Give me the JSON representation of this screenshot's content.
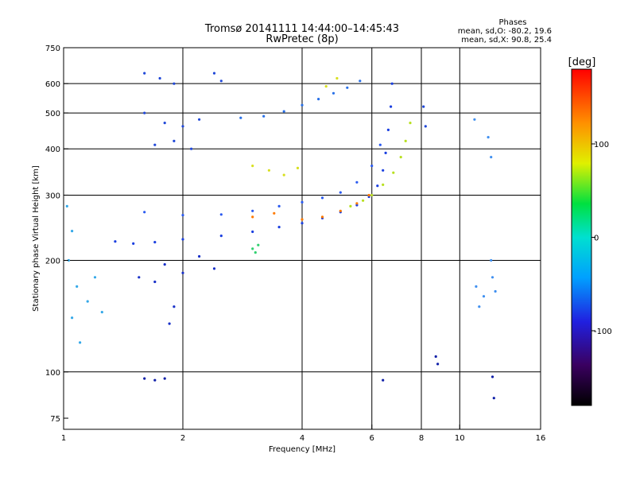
{
  "chart_data": {
    "type": "scatter",
    "title": "Tromsø 20141111 14:44:00–14:45:43",
    "subtitle": "RwPretec (8p)",
    "stats": {
      "heading": "Phases",
      "line_o": "mean, sd,O: -80.2, 19.6",
      "line_x": "mean, sd,X:  90.8, 25.4"
    },
    "xlabel": "Frequency [MHz]",
    "ylabel": "Stationary phase Virtual Height [km]",
    "x_scale": "log",
    "y_scale": "log",
    "xlim": [
      1,
      16
    ],
    "ylim": [
      70,
      750
    ],
    "x_ticks": [
      1,
      2,
      4,
      6,
      8,
      10,
      16
    ],
    "y_ticks": [
      75,
      100,
      200,
      300,
      400,
      500,
      600,
      750
    ],
    "x_gridlines": [
      2,
      4,
      6,
      8,
      10
    ],
    "y_gridlines": [
      100,
      200,
      300,
      400,
      500,
      600
    ],
    "grid": true,
    "colorbar": {
      "label": "[deg]",
      "range": [
        -180,
        180
      ],
      "ticks": [
        100,
        0,
        -100
      ],
      "placement": "right"
    },
    "series": [
      {
        "phase_deg": -100,
        "color": "#1a3fe0",
        "points": [
          [
            1.35,
            225
          ],
          [
            1.5,
            222
          ],
          [
            1.7,
            224
          ],
          [
            2.0,
            228
          ],
          [
            2.5,
            233
          ],
          [
            3.0,
            239
          ],
          [
            3.5,
            246
          ],
          [
            4.0,
            252
          ],
          [
            4.5,
            260
          ],
          [
            5.0,
            270
          ],
          [
            5.5,
            282
          ],
          [
            5.9,
            297
          ],
          [
            6.2,
            318
          ],
          [
            6.4,
            350
          ],
          [
            6.5,
            390
          ],
          [
            6.6,
            450
          ],
          [
            6.7,
            520
          ],
          [
            6.75,
            600
          ]
        ]
      },
      {
        "phase_deg": -90,
        "color": "#2a5af0",
        "points": [
          [
            1.6,
            270
          ],
          [
            2.0,
            265
          ],
          [
            2.5,
            266
          ],
          [
            3.0,
            272
          ],
          [
            3.5,
            280
          ],
          [
            4.0,
            287
          ],
          [
            4.5,
            295
          ],
          [
            5.0,
            305
          ],
          [
            5.5,
            325
          ],
          [
            6.0,
            360
          ],
          [
            6.3,
            410
          ]
        ]
      },
      {
        "phase_deg": -85,
        "color": "#2870e8",
        "points": [
          [
            2.8,
            485
          ],
          [
            3.2,
            490
          ],
          [
            3.6,
            505
          ],
          [
            4.0,
            525
          ],
          [
            4.4,
            545
          ],
          [
            4.8,
            565
          ],
          [
            5.2,
            585
          ],
          [
            5.6,
            610
          ]
        ]
      },
      {
        "phase_deg": 95,
        "color": "#b8e020",
        "points": [
          [
            5.3,
            280
          ],
          [
            5.7,
            290
          ],
          [
            6.0,
            300
          ],
          [
            6.4,
            320
          ],
          [
            6.8,
            345
          ],
          [
            7.1,
            380
          ],
          [
            7.3,
            420
          ],
          [
            7.5,
            470
          ]
        ]
      },
      {
        "phase_deg": 135,
        "color": "#ff7a00",
        "points": [
          [
            3.0,
            262
          ],
          [
            3.4,
            268
          ],
          [
            4.0,
            258
          ],
          [
            4.5,
            262
          ],
          [
            5.0,
            272
          ],
          [
            5.5,
            285
          ],
          [
            5.9,
            300
          ]
        ]
      },
      {
        "phase_deg": -75,
        "color": "#34a8e8",
        "points": [
          [
            1.02,
            280
          ],
          [
            1.05,
            240
          ],
          [
            1.03,
            200
          ],
          [
            1.08,
            170
          ],
          [
            1.05,
            140
          ],
          [
            1.1,
            120
          ],
          [
            1.15,
            155
          ],
          [
            1.2,
            180
          ],
          [
            1.25,
            145
          ]
        ]
      },
      {
        "phase_deg": -110,
        "color": "#1830c8",
        "points": [
          [
            1.55,
            180
          ],
          [
            1.7,
            175
          ],
          [
            1.8,
            195
          ],
          [
            2.0,
            185
          ],
          [
            2.2,
            205
          ],
          [
            2.4,
            190
          ],
          [
            1.9,
            150
          ],
          [
            1.85,
            135
          ]
        ]
      },
      {
        "phase_deg": 45,
        "color": "#30d070",
        "points": [
          [
            3.0,
            215
          ],
          [
            3.1,
            220
          ],
          [
            3.05,
            210
          ]
        ]
      },
      {
        "phase_deg": 90,
        "color": "#d8e020",
        "points": [
          [
            3.0,
            360
          ],
          [
            3.3,
            350
          ],
          [
            3.6,
            340
          ],
          [
            3.9,
            355
          ],
          [
            4.6,
            590
          ],
          [
            4.9,
            620
          ]
        ]
      },
      {
        "phase_deg": -95,
        "color": "#2048d8",
        "points": [
          [
            1.6,
            640
          ],
          [
            1.75,
            620
          ],
          [
            1.9,
            600
          ],
          [
            2.4,
            640
          ],
          [
            2.5,
            610
          ],
          [
            1.6,
            500
          ],
          [
            1.8,
            470
          ],
          [
            2.0,
            460
          ],
          [
            2.2,
            480
          ],
          [
            1.7,
            410
          ],
          [
            1.9,
            420
          ],
          [
            2.1,
            400
          ],
          [
            8.1,
            520
          ],
          [
            8.2,
            460
          ]
        ]
      },
      {
        "phase_deg": -80,
        "color": "#4090f0",
        "points": [
          [
            11.0,
            170
          ],
          [
            11.2,
            150
          ],
          [
            11.5,
            160
          ],
          [
            12.1,
            180
          ],
          [
            12.3,
            165
          ],
          [
            12.0,
            200
          ],
          [
            10.9,
            480
          ],
          [
            11.8,
            430
          ],
          [
            12.0,
            380
          ]
        ]
      },
      {
        "phase_deg": -120,
        "color": "#1020a8",
        "points": [
          [
            1.6,
            96
          ],
          [
            1.7,
            95
          ],
          [
            1.8,
            96
          ],
          [
            6.4,
            95
          ],
          [
            12.1,
            97
          ],
          [
            12.2,
            85
          ],
          [
            8.7,
            110
          ],
          [
            8.8,
            105
          ]
        ]
      }
    ]
  }
}
